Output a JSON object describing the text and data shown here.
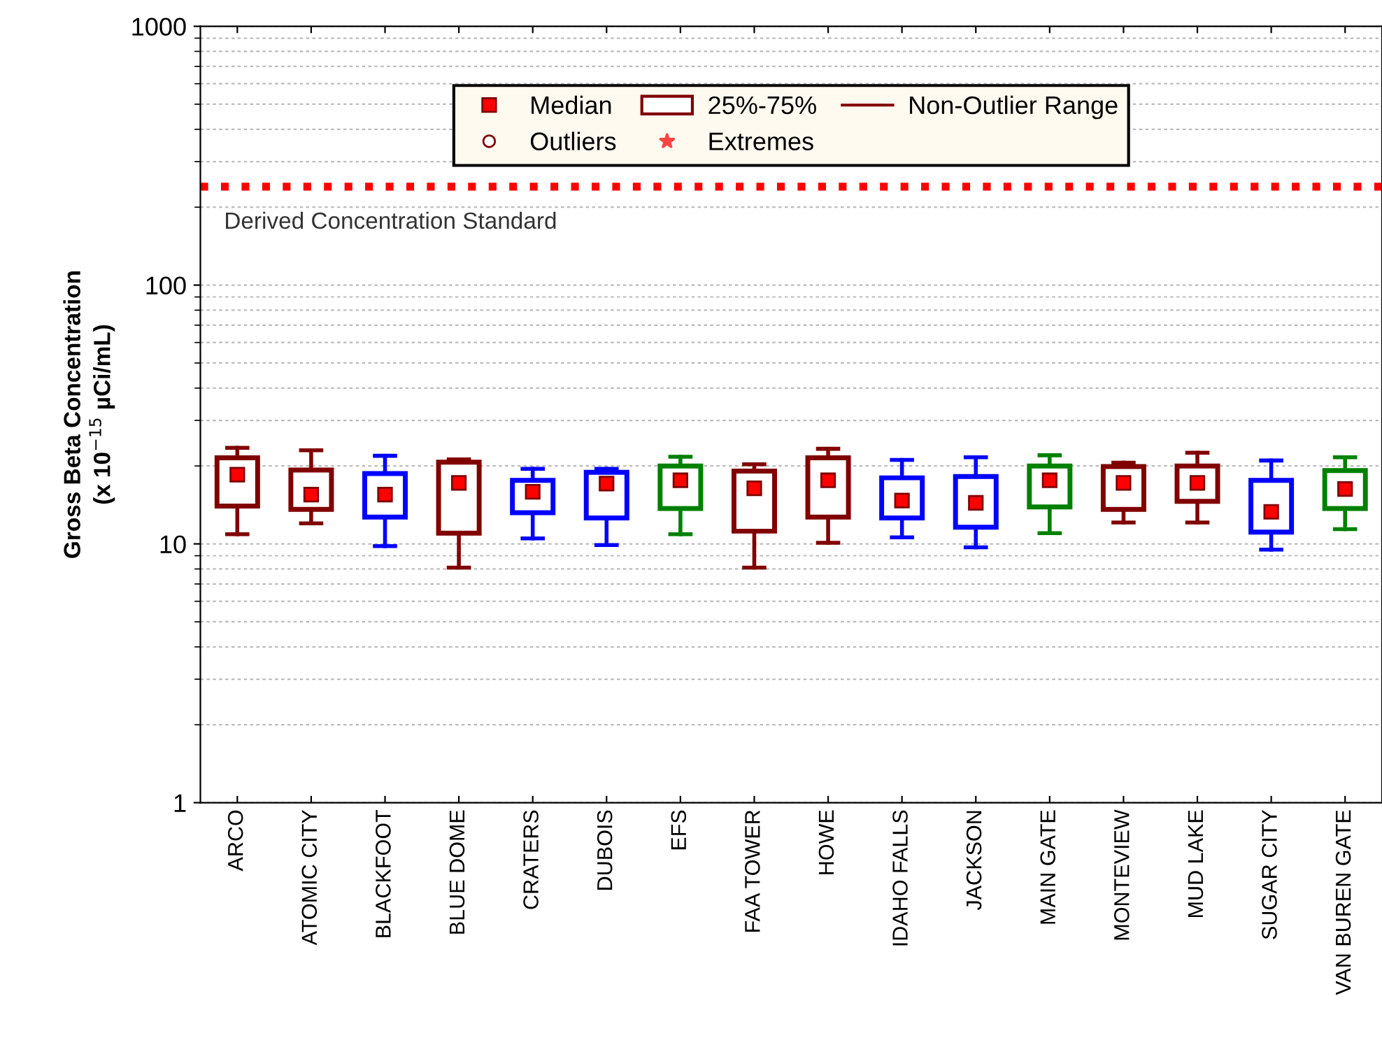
{
  "chart_data": {
    "type": "box",
    "ylabel": "Gross Beta Concentration\n(x 10$^{−15}$ µCi/mL)",
    "categories": [
      "ARCO",
      "ATOMIC CITY",
      "BLACKFOOT",
      "BLUE DOME",
      "CRATERS",
      "DUBOIS",
      "EFS",
      "FAA TOWER",
      "HOWE",
      "IDAHO FALLS",
      "JACKSON",
      "MAIN GATE",
      "MONTEVIEW",
      "MUD LAKE",
      "SUGAR CITY",
      "VAN BUREN GATE"
    ],
    "boxes": [
      {
        "low": 10.9,
        "q1": 14.0,
        "median": 18.5,
        "q3": 21.5,
        "high": 23.5
      },
      {
        "low": 12.0,
        "q1": 13.6,
        "median": 15.5,
        "q3": 19.3,
        "high": 23.0
      },
      {
        "low": 9.8,
        "q1": 12.7,
        "median": 15.5,
        "q3": 18.7,
        "high": 21.9
      },
      {
        "low": 8.1,
        "q1": 11.0,
        "median": 17.2,
        "q3": 20.7,
        "high": 21.2
      },
      {
        "low": 10.5,
        "q1": 13.2,
        "median": 15.9,
        "q3": 17.6,
        "high": 19.5
      },
      {
        "low": 9.9,
        "q1": 12.6,
        "median": 17.1,
        "q3": 18.9,
        "high": 19.5
      },
      {
        "low": 10.9,
        "q1": 13.7,
        "median": 17.6,
        "q3": 20.0,
        "high": 21.7
      },
      {
        "low": 8.1,
        "q1": 11.2,
        "median": 16.4,
        "q3": 19.1,
        "high": 20.3
      },
      {
        "low": 10.1,
        "q1": 12.7,
        "median": 17.6,
        "q3": 21.5,
        "high": 23.3
      },
      {
        "low": 10.6,
        "q1": 12.6,
        "median": 14.7,
        "q3": 18.0,
        "high": 21.1
      },
      {
        "low": 9.7,
        "q1": 11.6,
        "median": 14.4,
        "q3": 18.2,
        "high": 21.6
      },
      {
        "low": 11.0,
        "q1": 13.9,
        "median": 17.6,
        "q3": 20.0,
        "high": 22.0
      },
      {
        "low": 12.1,
        "q1": 13.6,
        "median": 17.2,
        "q3": 19.9,
        "high": 20.6
      },
      {
        "low": 12.1,
        "q1": 14.6,
        "median": 17.2,
        "q3": 20.0,
        "high": 22.5
      },
      {
        "low": 9.5,
        "q1": 11.1,
        "median": 13.3,
        "q3": 17.6,
        "high": 21.0
      },
      {
        "low": 11.4,
        "q1": 13.7,
        "median": 16.3,
        "q3": 19.2,
        "high": 21.6
      }
    ],
    "colors": [
      "#800000",
      "#800000",
      "#0000ff",
      "#800000",
      "#0000ff",
      "#0000ff",
      "#008000",
      "#800000",
      "#800000",
      "#0000ff",
      "#0000ff",
      "#008000",
      "#800000",
      "#800000",
      "#0000ff",
      "#008000"
    ],
    "log": "y",
    "ylim": [
      1,
      1000
    ],
    "yticks": [
      1,
      10,
      100,
      1000
    ],
    "grid": "y",
    "ref_lines": [
      {
        "axis": "y",
        "value": 240,
        "label": "Derived Concentration Standard",
        "color": "#ff0000",
        "line_style": "dotted"
      }
    ],
    "legend": "top",
    "annotations": [
      "Median",
      "25%-75%",
      "Non-Outlier Range",
      "Outliers",
      "Extremes"
    ]
  }
}
